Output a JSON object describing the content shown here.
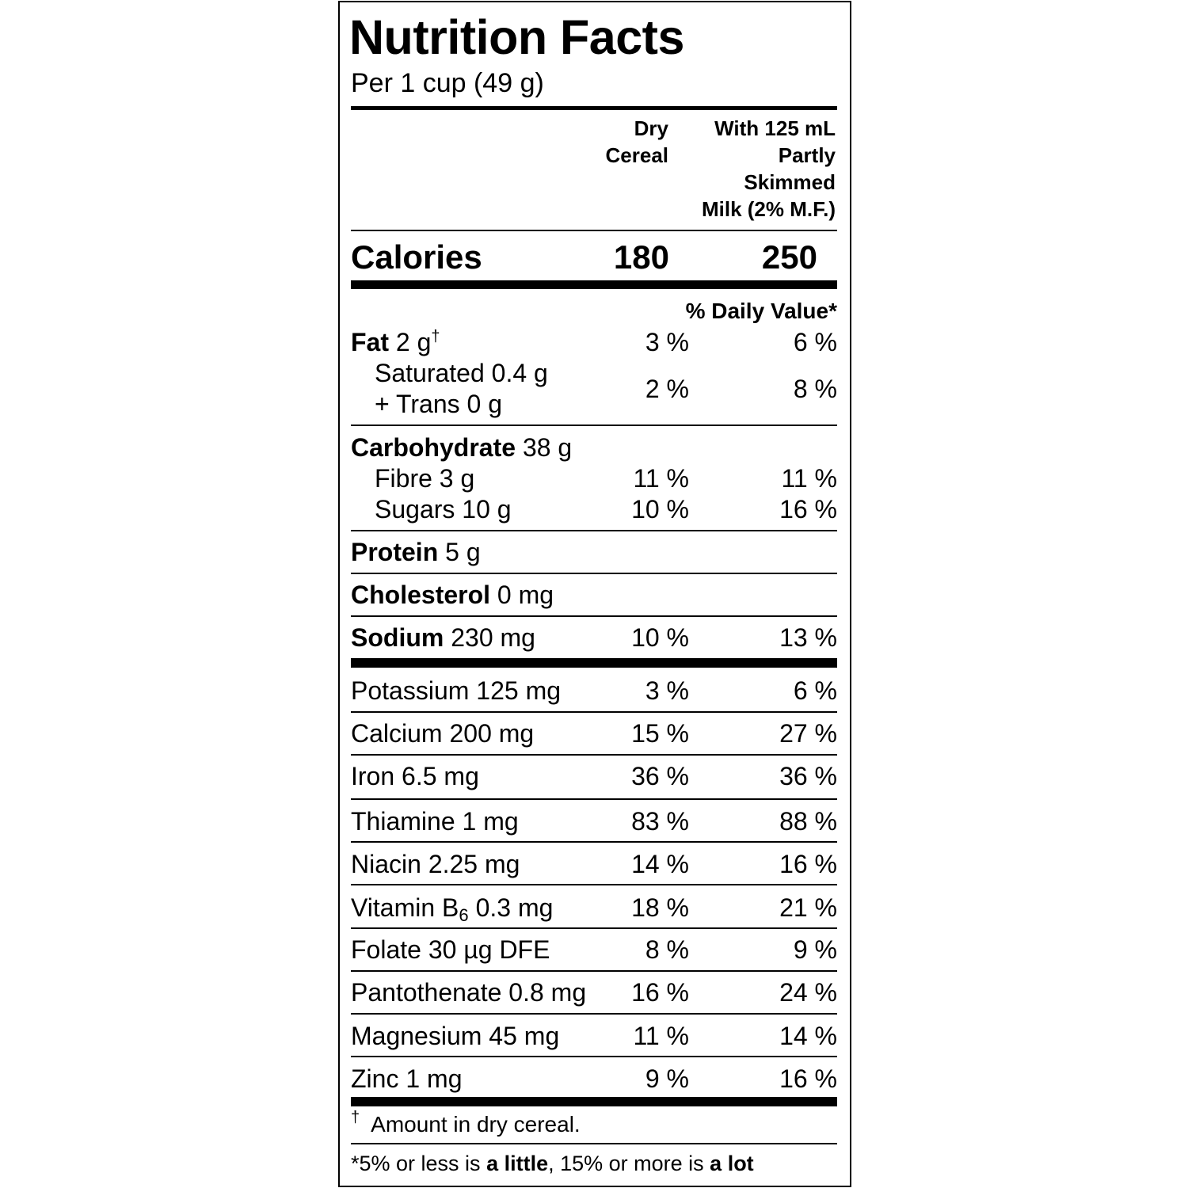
{
  "title": "Nutrition Facts",
  "serving": "Per 1 cup (49 g)",
  "columns": {
    "dry": [
      "Dry",
      "Cereal"
    ],
    "milk": [
      "With 125 mL",
      "Partly",
      "Skimmed",
      "Milk (2% M.F.)"
    ]
  },
  "calories": {
    "label": "Calories",
    "dry": 180,
    "milk": 250
  },
  "daily_value_header": "% Daily Value*",
  "fat": {
    "name": "Fat",
    "amount": "2 g",
    "mark": "†",
    "dry": "3 %",
    "milk": "6 %"
  },
  "saturated_trans": {
    "saturated": "Saturated 0.4 g",
    "trans": "+ Trans 0 g",
    "dry": "2 %",
    "milk": "8 %"
  },
  "carbohydrate": {
    "name": "Carbohydrate",
    "amount": "38 g"
  },
  "fibre": {
    "label": "Fibre 3 g",
    "dry": "11 %",
    "milk": "11 %"
  },
  "sugars": {
    "label": "Sugars 10 g",
    "dry": "10 %",
    "milk": "16 %"
  },
  "protein": {
    "name": "Protein",
    "amount": "5 g"
  },
  "cholesterol": {
    "name": "Cholesterol",
    "amount": "0 mg"
  },
  "sodium": {
    "name": "Sodium",
    "amount": "230 mg",
    "dry": "10 %",
    "milk": "13 %"
  },
  "minerals_vitamins": [
    {
      "label": "Potassium 125 mg",
      "dry": "3 %",
      "milk": "6 %"
    },
    {
      "label": "Calcium 200 mg",
      "dry": "15 %",
      "milk": "27 %"
    },
    {
      "label": "Iron 6.5 mg",
      "dry": "36 %",
      "milk": "36 %"
    },
    {
      "label": "Thiamine 1 mg",
      "dry": "83 %",
      "milk": "88 %"
    },
    {
      "label": "Niacin 2.25 mg",
      "dry": "14 %",
      "milk": "16 %"
    },
    {
      "label": "Vitamin B",
      "subscript": "6",
      "amount": "0.3 mg",
      "dry": "18 %",
      "milk": "21 %"
    },
    {
      "label": "Folate 30 µg DFE",
      "dry": "8 %",
      "milk": "9 %"
    },
    {
      "label": "Pantothenate 0.8 mg",
      "dry": "16 %",
      "milk": "24 %"
    },
    {
      "label": "Magnesium 45 mg",
      "dry": "11 %",
      "milk": "14 %"
    },
    {
      "label": "Zinc 1 mg",
      "dry": "9 %",
      "milk": "16 %"
    }
  ],
  "footnote": {
    "mark": "†",
    "text": "Amount in dry cereal."
  },
  "legend": [
    "*5% or less is ",
    "a little",
    ", 15% or more is ",
    "a lot"
  ]
}
